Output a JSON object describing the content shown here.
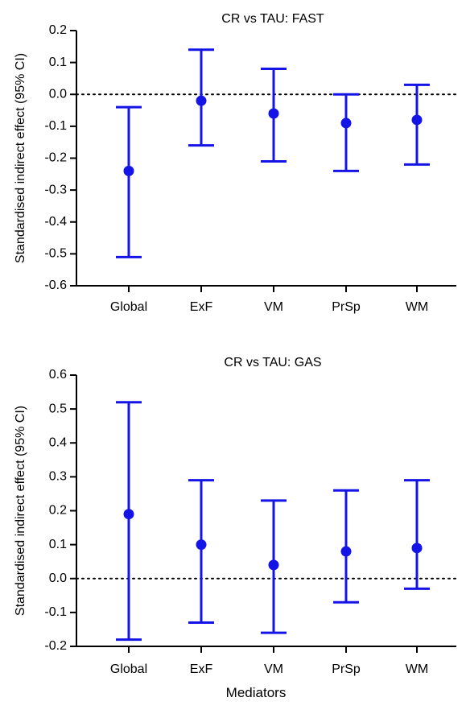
{
  "colors": {
    "series": "#1414e6",
    "axis": "#000000",
    "zero_line": "#000000"
  },
  "figure": {
    "xlabel": "Mediators"
  },
  "chart_data": [
    {
      "type": "scatter",
      "error_bars": true,
      "title": "CR vs TAU: FAST",
      "ylabel": "Standardised indirect effect (95% CI)",
      "categories": [
        "Global",
        "ExF",
        "VM",
        "PrSp",
        "WM"
      ],
      "values": [
        -0.24,
        -0.02,
        -0.06,
        -0.09,
        -0.08
      ],
      "ci_lower": [
        -0.51,
        -0.16,
        -0.21,
        -0.24,
        -0.22
      ],
      "ci_upper": [
        -0.04,
        0.14,
        0.08,
        0.0,
        0.03
      ],
      "ylim": [
        -0.6,
        0.2
      ],
      "yticks": [
        0.2,
        0.1,
        0.0,
        -0.1,
        -0.2,
        -0.3,
        -0.4,
        -0.5,
        -0.6
      ],
      "ytick_labels": [
        "0.2",
        "0.1",
        "0.0",
        "-0.1",
        "-0.2",
        "-0.3",
        "-0.4",
        "-0.5",
        "-0.6"
      ],
      "reference_line": 0.0,
      "grid": false
    },
    {
      "type": "scatter",
      "error_bars": true,
      "title": "CR vs TAU: GAS",
      "ylabel": "Standardised indirect effect (95% CI)",
      "categories": [
        "Global",
        "ExF",
        "VM",
        "PrSp",
        "WM"
      ],
      "values": [
        0.19,
        0.1,
        0.04,
        0.08,
        0.09
      ],
      "ci_lower": [
        -0.18,
        -0.13,
        -0.16,
        -0.07,
        -0.03
      ],
      "ci_upper": [
        0.52,
        0.29,
        0.23,
        0.26,
        0.29
      ],
      "ylim": [
        -0.2,
        0.6
      ],
      "yticks": [
        0.6,
        0.5,
        0.4,
        0.3,
        0.2,
        0.1,
        0.0,
        -0.1,
        -0.2
      ],
      "ytick_labels": [
        "0.6",
        "0.5",
        "0.4",
        "0.3",
        "0.2",
        "0.1",
        "0.0",
        "-0.1",
        "-0.2"
      ],
      "reference_line": 0.0,
      "grid": false
    }
  ]
}
